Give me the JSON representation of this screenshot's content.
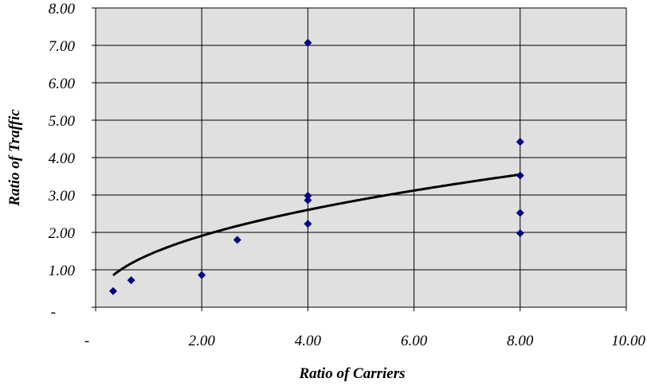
{
  "chart_data": {
    "type": "scatter",
    "title": "",
    "xlabel": "Ratio of Carriers",
    "ylabel": "Ratio of Traffic",
    "xlim": [
      0,
      10
    ],
    "ylim": [
      0,
      8
    ],
    "x_ticks": [
      0,
      2,
      4,
      6,
      8,
      10
    ],
    "x_tick_labels": [
      "-",
      "2.00",
      "4.00",
      "6.00",
      "8.00",
      "10.00"
    ],
    "y_ticks": [
      0,
      1,
      2,
      3,
      4,
      5,
      6,
      7,
      8
    ],
    "y_tick_labels": [
      "-",
      "1.00",
      "2.00",
      "3.00",
      "4.00",
      "5.00",
      "6.00",
      "7.00",
      "8.00"
    ],
    "grid": true,
    "legend": "none",
    "series": [
      {
        "marker": "diamond",
        "color": "#000080",
        "points": [
          {
            "x": 0.33,
            "y": 0.43
          },
          {
            "x": 0.67,
            "y": 0.72
          },
          {
            "x": 2.0,
            "y": 0.86
          },
          {
            "x": 2.67,
            "y": 1.8
          },
          {
            "x": 4.0,
            "y": 7.07
          },
          {
            "x": 4.0,
            "y": 2.98
          },
          {
            "x": 4.0,
            "y": 2.86
          },
          {
            "x": 4.0,
            "y": 2.23
          },
          {
            "x": 8.0,
            "y": 4.42
          },
          {
            "x": 8.0,
            "y": 3.52
          },
          {
            "x": 8.0,
            "y": 2.52
          },
          {
            "x": 8.0,
            "y": 1.98
          }
        ]
      }
    ],
    "trendline": {
      "type": "power",
      "coefficient": 1.4,
      "exponent": 0.447,
      "x_range": [
        0.33,
        8.0
      ],
      "color": "#000000"
    },
    "colors": {
      "plot_background": "#e0e0e0",
      "grid": "#000000",
      "marker": "#000080",
      "trendline": "#000000"
    }
  }
}
